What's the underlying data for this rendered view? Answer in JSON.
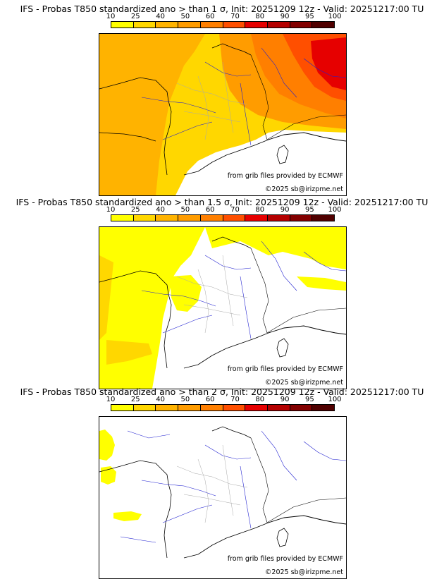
{
  "colorbar": {
    "ticks": [
      "10",
      "25",
      "40",
      "50",
      "60",
      "70",
      "80",
      "90",
      "95",
      "100"
    ],
    "colors": [
      "#ffff00",
      "#ffd700",
      "#ffb300",
      "#ff9c00",
      "#ff7f00",
      "#ff4f00",
      "#e60000",
      "#b40000",
      "#820000",
      "#500000"
    ]
  },
  "panels": [
    {
      "title": "IFS - Probas T850  standardized ano > than 1 σ, Init: 20251209 12z - Valid: 20251217:00 TU",
      "source": "from grib files provided by ECMWF",
      "copyright": "©2025 sb@irizpme.net"
    },
    {
      "title": "IFS - Probas T850  standardized ano > than 1.5 σ, Init: 20251209 12z - Valid: 20251217:00 TU",
      "source": "from grib files provided by ECMWF",
      "copyright": "©2025 sb@irizpme.net"
    },
    {
      "title": "IFS - Probas T850  standardized ano > than 2 σ, Init: 20251209 12z - Valid: 20251217:00 TU",
      "source": "from grib files provided by ECMWF",
      "copyright": "©2025 sb@irizpme.net"
    }
  ],
  "colors": {
    "coast": "#000000",
    "rivers": "#2020d0",
    "departments": "#a8a8a8",
    "sea": "#ffffff"
  }
}
